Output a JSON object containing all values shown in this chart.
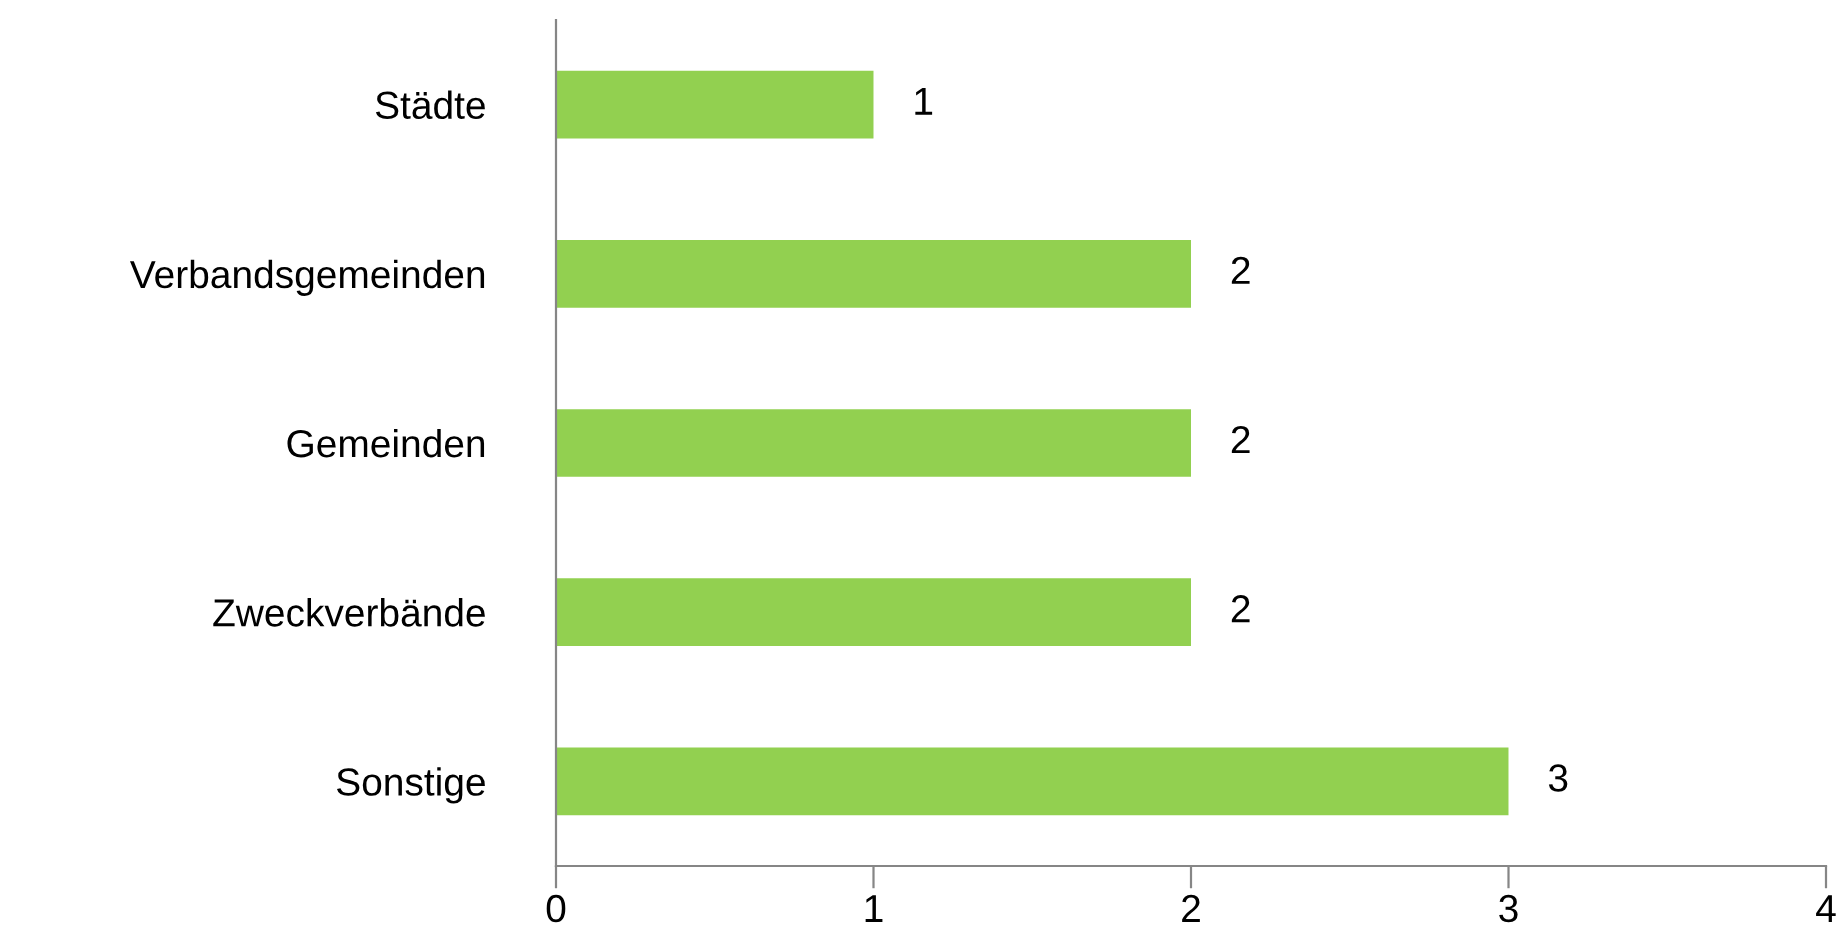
{
  "chart_data": {
    "type": "bar",
    "orientation": "horizontal",
    "categories": [
      "Städte",
      "Verbandsgemeinden",
      "Gemeinden",
      "Zweckverbände",
      "Sonstige"
    ],
    "values": [
      1,
      2,
      2,
      2,
      3
    ],
    "color": "#92d050",
    "xlim": [
      0,
      4
    ],
    "xticks": [
      0,
      1,
      2,
      3,
      4
    ],
    "grid": false,
    "data_labels": true
  }
}
